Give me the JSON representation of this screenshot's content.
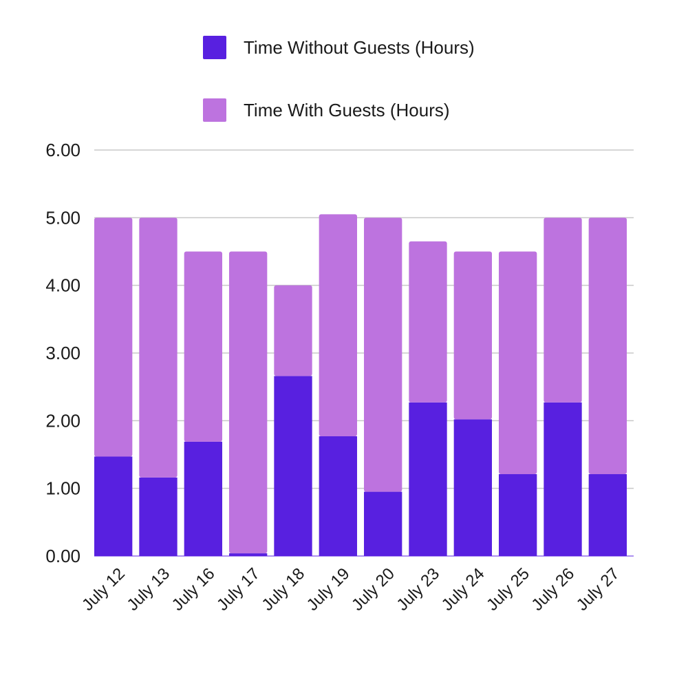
{
  "chart_data": {
    "type": "bar",
    "stacked": true,
    "categories": [
      "July 12",
      "July 13",
      "July 16",
      "July 17",
      "July 18",
      "July 19",
      "July 20",
      "July 23",
      "July 24",
      "July 25",
      "July 26",
      "July 27"
    ],
    "series": [
      {
        "name": "Time Without Guests (Hours)",
        "color": "#5820e0",
        "values": [
          1.47,
          1.16,
          1.69,
          0.04,
          2.66,
          1.77,
          0.95,
          2.27,
          2.02,
          1.21,
          2.27,
          1.21
        ]
      },
      {
        "name": "Time With Guests (Hours)",
        "color": "#bd73df",
        "values": [
          3.53,
          3.84,
          2.81,
          4.46,
          1.34,
          3.28,
          4.05,
          2.38,
          2.48,
          3.29,
          2.73,
          3.79
        ]
      }
    ],
    "yticks": [
      "0.00",
      "1.00",
      "2.00",
      "3.00",
      "4.00",
      "5.00",
      "6.00"
    ],
    "ylim": [
      0,
      6
    ],
    "grid": true,
    "legend_position": "top-center"
  }
}
